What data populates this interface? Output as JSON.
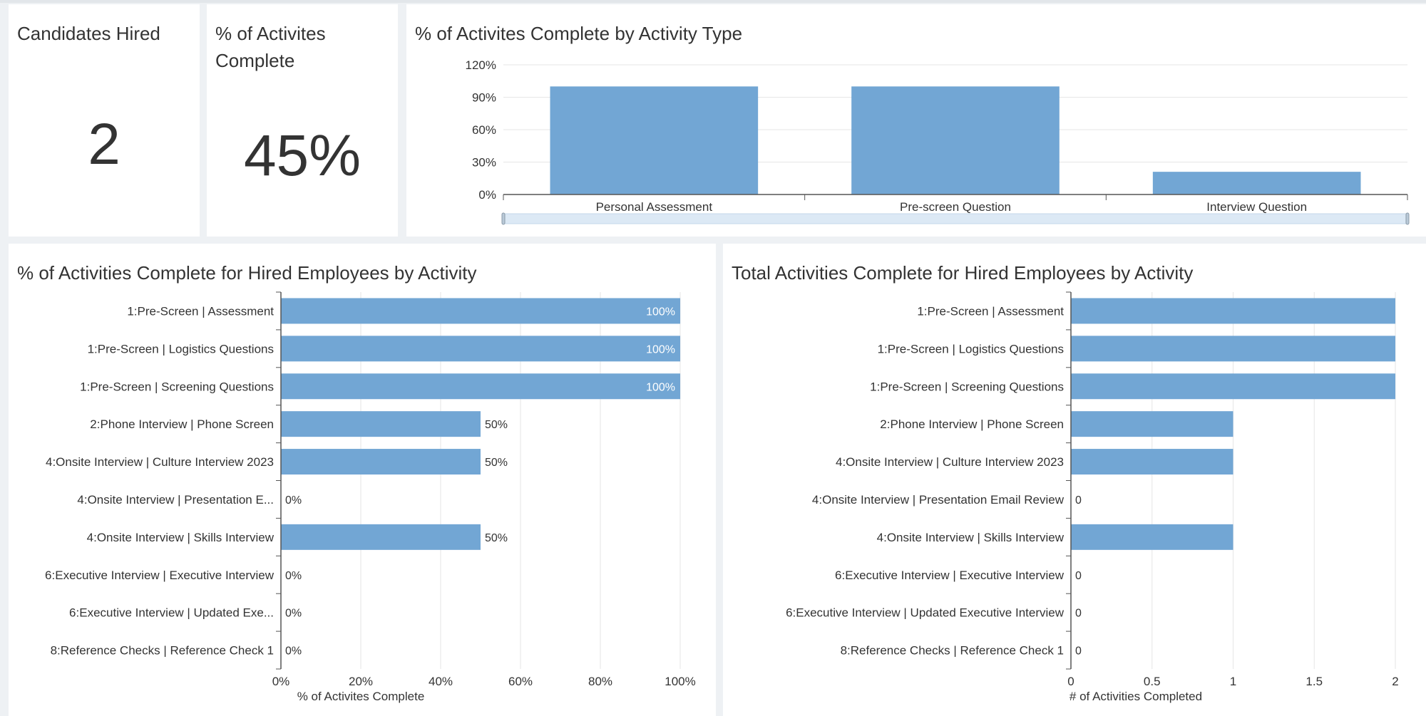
{
  "kpis": {
    "hired": {
      "title": "Candidates Hired",
      "value": "2"
    },
    "pct_complete": {
      "title_line1": "% of Activites",
      "title_line2": "Complete",
      "value": "45%"
    }
  },
  "colors": {
    "bar": "#72a6d4",
    "axis": "#555555",
    "grid": "#e6e6e6",
    "text": "#333333",
    "scroll_track": "#dce9f5"
  },
  "chart_data": [
    {
      "id": "by_type",
      "type": "bar",
      "title": "% of Activites Complete by Activity Type",
      "categories": [
        "Personal Assessment",
        "Pre-screen Question",
        "Interview Question"
      ],
      "values": [
        100,
        100,
        21
      ],
      "yticks": [
        "0%",
        "30%",
        "60%",
        "90%",
        "120%"
      ],
      "ylim": [
        0,
        120
      ],
      "xlabel": "",
      "ylabel": ""
    },
    {
      "id": "pct_by_activity",
      "type": "bar",
      "orientation": "horizontal",
      "title": "% of Activities Complete for Hired Employees by Activity",
      "categories": [
        "1:Pre-Screen | Assessment",
        "1:Pre-Screen | Logistics Questions",
        "1:Pre-Screen | Screening Questions",
        "2:Phone Interview | Phone Screen",
        "4:Onsite Interview | Culture Interview 2023",
        "4:Onsite Interview | Presentation E...",
        "4:Onsite Interview | Skills Interview",
        "6:Executive Interview | Executive Interview",
        "6:Executive Interview | Updated Exe...",
        "8:Reference Checks | Reference Check 1"
      ],
      "values": [
        100,
        100,
        100,
        50,
        50,
        0,
        50,
        0,
        0,
        0
      ],
      "value_labels": [
        "100%",
        "100%",
        "100%",
        "50%",
        "50%",
        "0%",
        "50%",
        "0%",
        "0%",
        "0%"
      ],
      "xticks": [
        "0%",
        "20%",
        "40%",
        "60%",
        "80%",
        "100%"
      ],
      "xlim": [
        0,
        100
      ],
      "xlabel": "% of Activites Complete",
      "ylabel": ""
    },
    {
      "id": "total_by_activity",
      "type": "bar",
      "orientation": "horizontal",
      "title": "Total Activities Complete for Hired Employees by Activity",
      "categories": [
        "1:Pre-Screen | Assessment",
        "1:Pre-Screen | Logistics Questions",
        "1:Pre-Screen | Screening Questions",
        "2:Phone Interview | Phone Screen",
        "4:Onsite Interview | Culture Interview 2023",
        "4:Onsite Interview | Presentation Email Review",
        "4:Onsite Interview | Skills Interview",
        "6:Executive Interview | Executive Interview",
        "6:Executive Interview | Updated Executive Interview",
        "8:Reference Checks | Reference Check 1"
      ],
      "values": [
        2,
        2,
        2,
        1,
        1,
        0,
        1,
        0,
        0,
        0
      ],
      "value_labels": [
        "",
        "",
        "",
        "",
        "",
        "0",
        "",
        "0",
        "0",
        "0"
      ],
      "xticks": [
        "0",
        "0.5",
        "1",
        "1.5",
        "2"
      ],
      "xlim": [
        0,
        2
      ],
      "xlabel": "# of Activities Completed",
      "ylabel": ""
    }
  ]
}
